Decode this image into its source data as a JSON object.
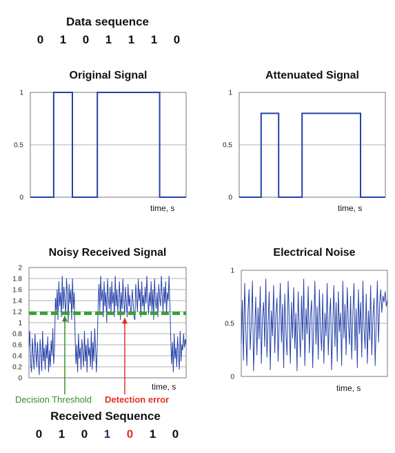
{
  "header": {
    "title": "Data sequence",
    "bits": [
      "0",
      "1",
      "0",
      "1",
      "1",
      "1",
      "0"
    ]
  },
  "footer": {
    "title": "Received Sequence",
    "bits": [
      "0",
      "1",
      "0",
      "1",
      "0",
      "1",
      "0"
    ],
    "bit_colors": [
      "#111111",
      "#111111",
      "#111111",
      "#1f3a5f",
      "#e03020",
      "#111111",
      "#111111"
    ]
  },
  "annotations": {
    "threshold_label": "Decision Threshold",
    "threshold_color": "#3a8a2a",
    "error_label": "Detection error",
    "error_color": "#e03020"
  },
  "chart_data": [
    {
      "type": "line",
      "title": "Original Signal",
      "xlabel": "time, s",
      "ylabel": "",
      "ylim": [
        0,
        1
      ],
      "yticks": [
        "0",
        "0.5",
        "1"
      ],
      "grid": true,
      "series": [
        {
          "x": [
            0,
            0.15,
            0.15,
            0.27,
            0.27,
            0.43,
            0.43,
            0.83,
            0.83,
            1
          ],
          "y": [
            0,
            0,
            1,
            1,
            0,
            0,
            1,
            1,
            0,
            0
          ]
        }
      ]
    },
    {
      "type": "line",
      "title": "Attenuated Signal",
      "xlabel": "time, s",
      "ylabel": "",
      "ylim": [
        0,
        1
      ],
      "yticks": [
        "0",
        "0.5",
        "1"
      ],
      "grid": true,
      "series": [
        {
          "x": [
            0,
            0.15,
            0.15,
            0.27,
            0.27,
            0.43,
            0.43,
            0.83,
            0.83,
            1
          ],
          "y": [
            0,
            0,
            0.8,
            0.8,
            0,
            0,
            0.8,
            0.8,
            0,
            0
          ]
        }
      ]
    },
    {
      "type": "line",
      "title": "Noisy Received Signal",
      "xlabel": "time, s",
      "ylabel": "",
      "ylim": [
        0,
        2
      ],
      "yticks": [
        "0",
        "0.2",
        "0.4",
        "0.6",
        "0.8",
        "1",
        "1.2",
        "1.4",
        "1.6",
        "1.8",
        "2"
      ],
      "grid": true,
      "threshold": 1.17,
      "series": [
        {
          "y": [
            0.55,
            0.85,
            0.25,
            0.1,
            0.72,
            0.38,
            0.15,
            0.8,
            0.5,
            0.2,
            0.65,
            0.3,
            0.05,
            0.7,
            0.45,
            0.12,
            0.85,
            0.3,
            0.55,
            0.15,
            0.6,
            0.35,
            0.75,
            0.1,
            0.5,
            0.2,
            0.68,
            0.4,
            0.9,
            0.25,
            0.55,
            1.45,
            1.2,
            1.6,
            1.05,
            1.75,
            1.3,
            1.55,
            1.1,
            1.85,
            1.25,
            1.65,
            1.4,
            1.15,
            1.8,
            1.5,
            1.0,
            1.7,
            1.35,
            1.6,
            1.05,
            1.8,
            1.25,
            1.55,
            0.75,
            0.25,
            0.6,
            0.1,
            0.8,
            0.35,
            0.55,
            0.15,
            0.7,
            0.45,
            0.2,
            0.85,
            0.3,
            0.6,
            0.1,
            0.72,
            0.4,
            0.55,
            0.2,
            0.85,
            0.15,
            0.65,
            0.3,
            0.9,
            0.5,
            0.1,
            0.6,
            1.35,
            1.7,
            1.2,
            1.85,
            1.4,
            1.6,
            1.1,
            1.75,
            1.3,
            1.55,
            1.0,
            1.8,
            1.45,
            1.25,
            1.65,
            1.15,
            1.75,
            1.35,
            1.55,
            1.1,
            1.85,
            1.3,
            1.6,
            1.2,
            1.45,
            1.75,
            1.05,
            1.55,
            1.25,
            1.8,
            1.4,
            1.15,
            1.65,
            1.35,
            1.1,
            1.7,
            1.3,
            1.5,
            1.15,
            1.25,
            1.6,
            1.35,
            1.1,
            1.05,
            1.7,
            1.45,
            1.2,
            1.8,
            1.4,
            1.6,
            1.1,
            1.75,
            1.3,
            1.5,
            1.2,
            1.65,
            1.35,
            1.85,
            1.45,
            1.15,
            1.55,
            1.3,
            1.75,
            1.2,
            1.6,
            1.05,
            1.8,
            1.4,
            1.25,
            1.55,
            1.1,
            1.7,
            1.45,
            1.3,
            1.85,
            1.5,
            1.2,
            1.65,
            1.35,
            1.75,
            1.15,
            1.55,
            1.4,
            1.85,
            1.3,
            0.7,
            0.25,
            0.65,
            0.1,
            0.8,
            0.35,
            0.55,
            0.2,
            0.75,
            0.45,
            0.15,
            0.85,
            0.3,
            0.6,
            0.5,
            0.8,
            0.55,
            0.7,
            0.6
          ]
        }
      ]
    },
    {
      "type": "line",
      "title": "Electrical Noise",
      "xlabel": "time, s",
      "ylabel": "",
      "ylim": [
        0,
        1
      ],
      "yticks": [
        "0",
        "0.5",
        "1"
      ],
      "grid": true,
      "series": [
        {
          "y": [
            0.3,
            0.72,
            0.15,
            0.88,
            0.45,
            0.1,
            0.6,
            0.82,
            0.25,
            0.5,
            0.9,
            0.05,
            0.4,
            0.75,
            0.2,
            0.65,
            0.35,
            0.85,
            0.12,
            0.55,
            0.7,
            0.28,
            0.92,
            0.18,
            0.48,
            0.8,
            0.06,
            0.62,
            0.38,
            0.86,
            0.22,
            0.58,
            0.74,
            0.14,
            0.5,
            0.88,
            0.32,
            0.68,
            0.08,
            0.78,
            0.42,
            0.2,
            0.9,
            0.55,
            0.12,
            0.7,
            0.36,
            0.84,
            0.26,
            0.6,
            0.05,
            0.8,
            0.46,
            0.18,
            0.76,
            0.34,
            0.92,
            0.1,
            0.64,
            0.4,
            0.85,
            0.22,
            0.56,
            0.72,
            0.08,
            0.5,
            0.9,
            0.3,
            0.66,
            0.16,
            0.82,
            0.44,
            0.24,
            0.78,
            0.12,
            0.6,
            0.38,
            0.88,
            0.2,
            0.54,
            0.74,
            0.06,
            0.48,
            0.86,
            0.28,
            0.7,
            0.14,
            0.8,
            0.42,
            0.6,
            0.1,
            0.9,
            0.36,
            0.68,
            0.2,
            0.84,
            0.5,
            0.3,
            0.76,
            0.16,
            0.58,
            0.88,
            0.24,
            0.64,
            0.08,
            0.82,
            0.4,
            0.7,
            0.18,
            0.9,
            0.46,
            0.26,
            0.78,
            0.12,
            0.62,
            0.34,
            0.86,
            0.2,
            0.56,
            0.74,
            0.1,
            0.5,
            0.9,
            0.32,
            0.68,
            0.82,
            0.6,
            0.76,
            0.7,
            0.8,
            0.66,
            0.72
          ]
        }
      ]
    }
  ]
}
